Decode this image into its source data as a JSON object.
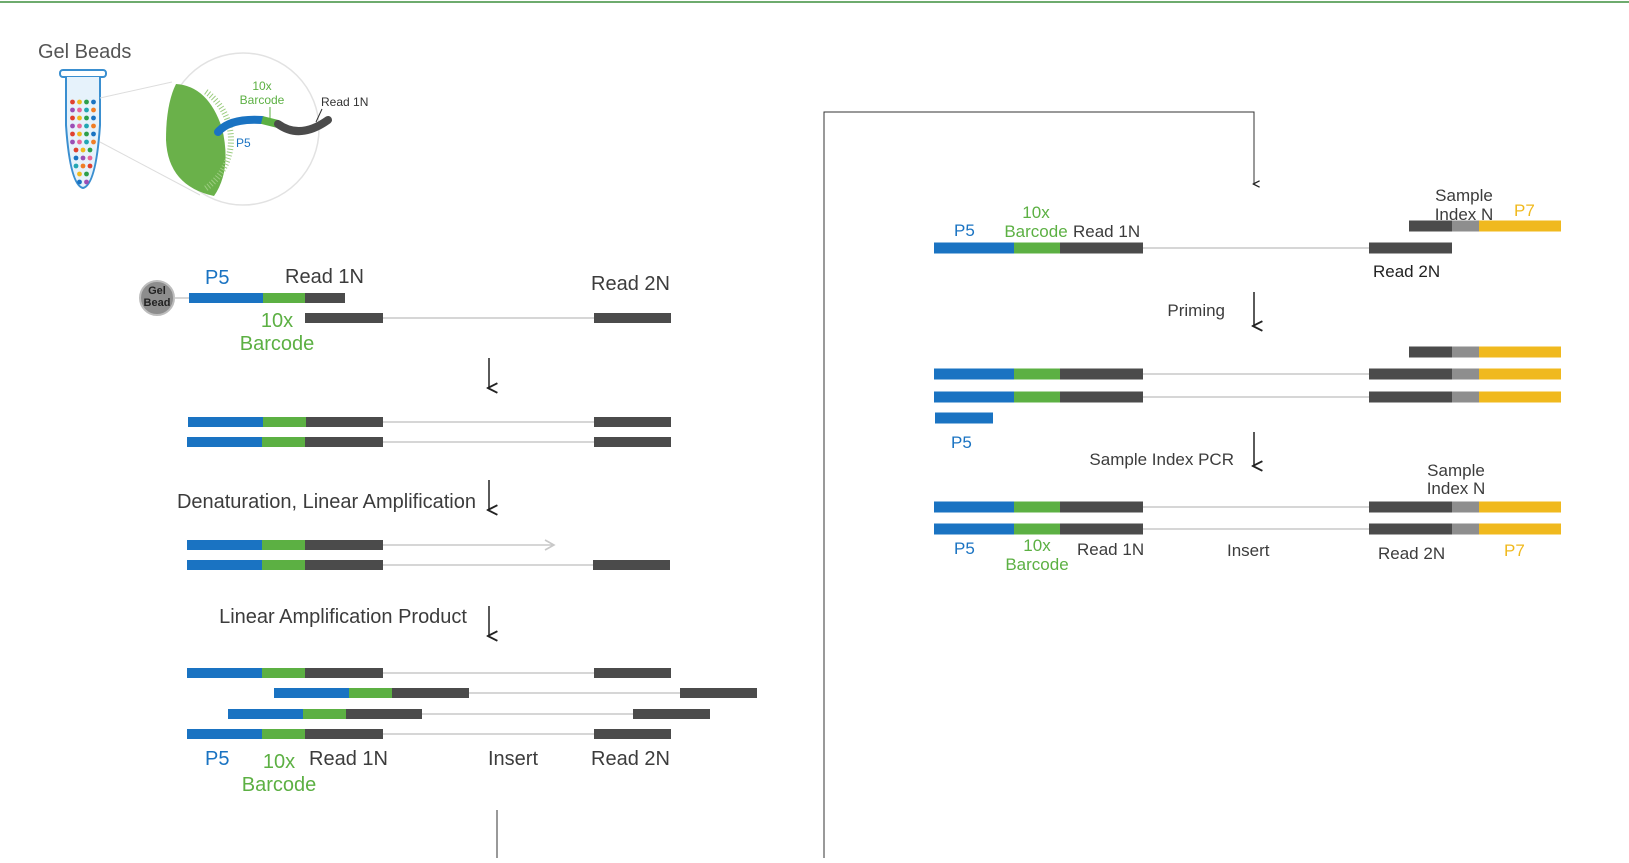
{
  "colors": {
    "p5": "#1a73c2",
    "barcode": "#5cb043",
    "read": "#4b4b4b",
    "insert": "#c8c8c8",
    "index": "#8e8e8e",
    "p7": "#f0b91e",
    "text": "#3c3c3c",
    "gel_bead": "#8d8d8d",
    "top_rule": "#3f8f3f"
  },
  "icons": {
    "tube": "test-tube-icon",
    "bead": "gel-bead-icon",
    "arrow": "down-arrow-icon"
  },
  "gel_beads": {
    "title": "Gel Beads",
    "barcode_line1": "10x",
    "barcode_line2": "Barcode",
    "read1": "Read 1N",
    "p5": "P5"
  },
  "left": {
    "bead_line1": "Gel",
    "bead_line2": "Bead",
    "p5": "P5",
    "read1": "Read 1N",
    "read2": "Read 2N",
    "barcode_line1": "10x",
    "barcode_line2": "Barcode",
    "step_denature": "Denaturation, Linear Amplification",
    "step_product": "Linear Amplification Product",
    "bottom_p5": "P5",
    "bottom_barcode_line1": "10x",
    "bottom_barcode_line2": "Barcode",
    "bottom_read1": "Read 1N",
    "bottom_insert": "Insert",
    "bottom_read2": "Read 2N"
  },
  "right": {
    "p5": "P5",
    "barcode_line1": "10x",
    "barcode_line2": "Barcode",
    "read1": "Read 1N",
    "sample_index_line1": "Sample",
    "sample_index_line2": "Index N",
    "p7": "P7",
    "read2": "Read 2N",
    "step_priming": "Priming",
    "p5_primer": "P5",
    "step_pcr": "Sample Index PCR",
    "final_sample_index_line1": "Sample",
    "final_sample_index_line2": "Index N",
    "bottom_p5": "P5",
    "bottom_barcode_line1": "10x",
    "bottom_barcode_line2": "Barcode",
    "bottom_read1": "Read 1N",
    "bottom_insert": "Insert",
    "bottom_read2": "Read 2N",
    "bottom_p7": "P7"
  }
}
